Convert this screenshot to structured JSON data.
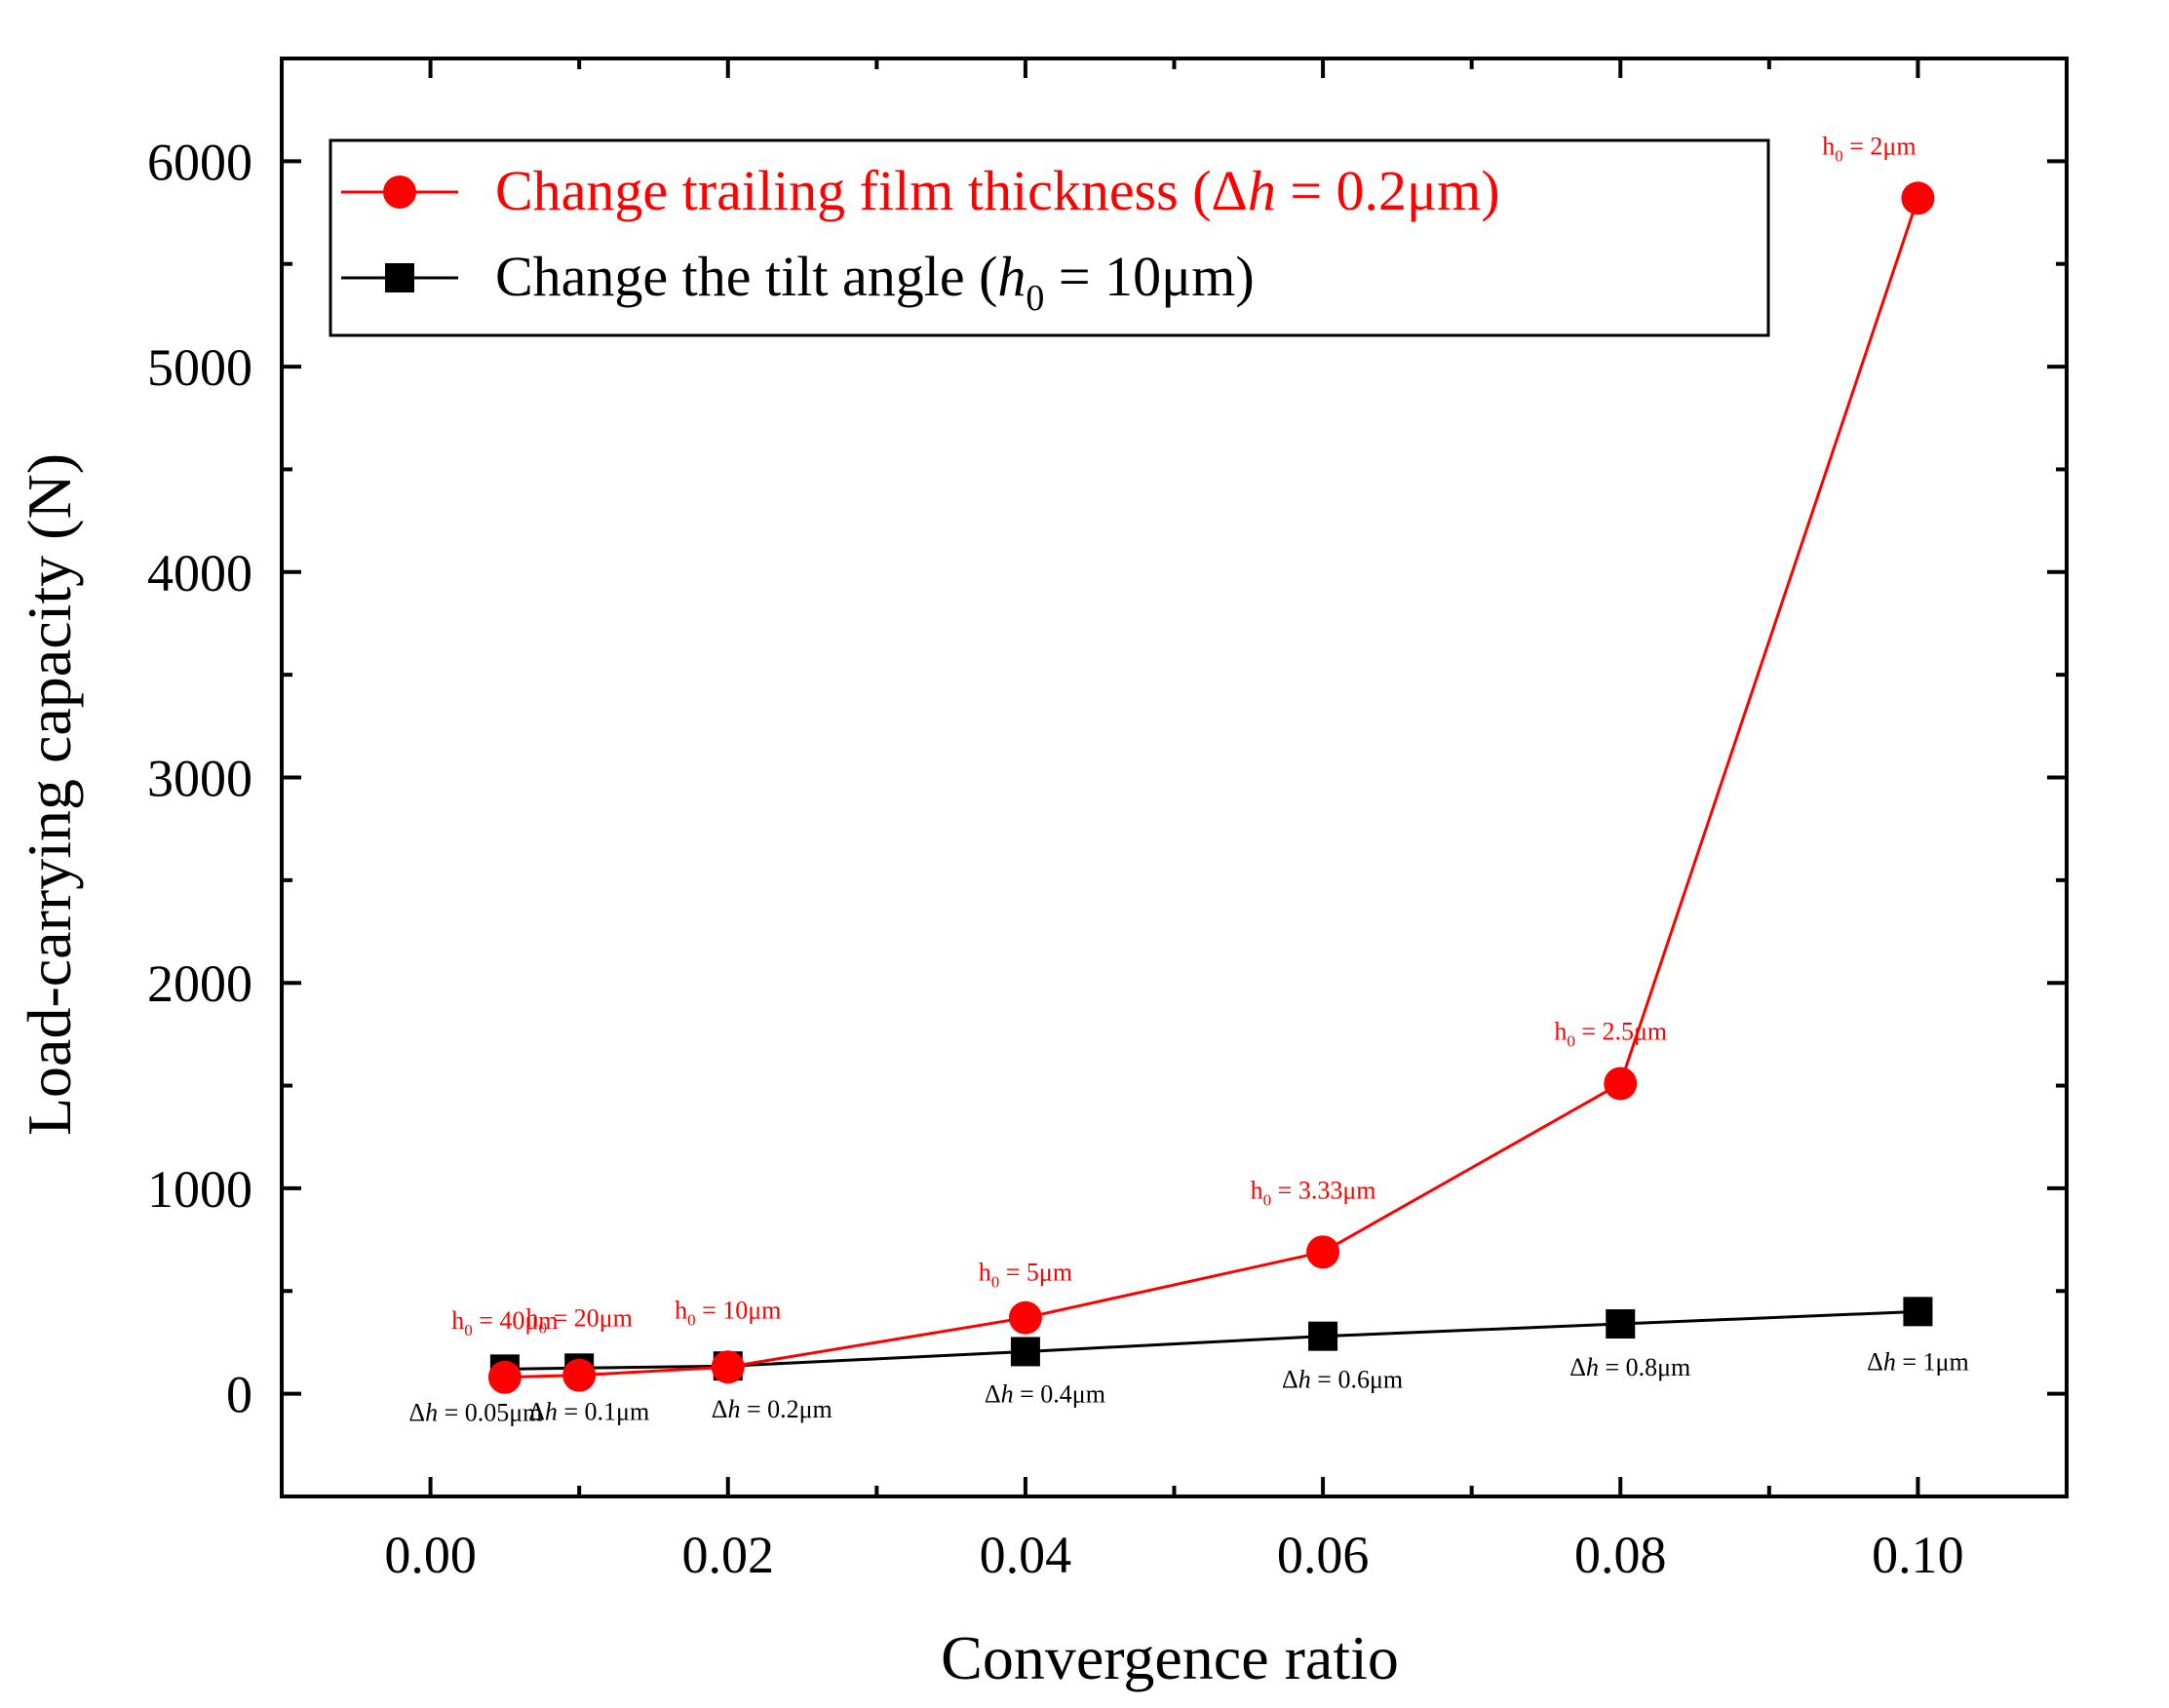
{
  "chart_data": {
    "type": "line",
    "xlabel": "Convergence ratio",
    "ylabel": "Load-carrying capacity (N)",
    "xlim": [
      -0.01,
      0.11
    ],
    "ylim": [
      -500,
      6500
    ],
    "xticks": [
      0.0,
      0.02,
      0.04,
      0.06,
      0.08,
      0.1
    ],
    "xtick_labels": [
      "0.00",
      "0.02",
      "0.04",
      "0.06",
      "0.08",
      "0.10"
    ],
    "yticks": [
      0,
      1000,
      2000,
      3000,
      4000,
      5000,
      6000
    ],
    "ytick_labels": [
      "0",
      "1000",
      "2000",
      "3000",
      "4000",
      "5000",
      "6000"
    ],
    "legend_position": "top-left",
    "series": [
      {
        "name": "Change trailing film thickness (Δh = 0.2μm)",
        "legend_parts": [
          "Change trailing film thickness (Δ",
          "h",
          " = 0.2μm)"
        ],
        "color": "#ff0000",
        "marker": "circle",
        "x": [
          0.005,
          0.01,
          0.02,
          0.04,
          0.06,
          0.08,
          0.1
        ],
        "y": [
          80,
          90,
          130,
          370,
          690,
          1510,
          5820
        ],
        "labels": [
          "h0 = 40μm",
          "h0 = 20μm",
          "h0 = 10μm",
          "h0 = 5μm",
          "h0 = 3.33μm",
          "h0 = 2.5μm",
          "h0 = 2μm"
        ],
        "label_parts": [
          [
            "h",
            "0",
            " = 40μm"
          ],
          [
            "h",
            "0",
            " = 20μm"
          ],
          [
            "h",
            "0",
            " = 10μm"
          ],
          [
            "h",
            "0",
            " = 5μm"
          ],
          [
            "h",
            "0",
            " = 3.33μm"
          ],
          [
            "h",
            "0",
            " = 2.5μm"
          ],
          [
            "h",
            "0",
            " = 2μm"
          ]
        ]
      },
      {
        "name": "Change the tilt angle (h0 = 10μm)",
        "legend_parts": [
          "Change the tilt angle (",
          "h",
          "0",
          " = 10μm)"
        ],
        "color": "#000000",
        "marker": "square",
        "x": [
          0.005,
          0.01,
          0.02,
          0.04,
          0.06,
          0.08,
          0.1
        ],
        "y": [
          120,
          125,
          135,
          205,
          280,
          340,
          400
        ],
        "labels": [
          "Δh = 0.05μm",
          "Δh = 0.1μm",
          "Δh = 0.2μm",
          "Δh = 0.4μm",
          "Δh = 0.6μm",
          "Δh = 0.8μm",
          "Δh = 1μm"
        ],
        "label_parts": [
          [
            "Δ",
            "h",
            " = 0.05μm"
          ],
          [
            "Δ",
            "h",
            " = 0.1μm"
          ],
          [
            "Δ",
            "h",
            " = 0.2μm"
          ],
          [
            "Δ",
            "h",
            " = 0.4μm"
          ],
          [
            "Δ",
            "h",
            " = 0.6μm"
          ],
          [
            "Δ",
            "h",
            " = 0.8μm"
          ],
          [
            "Δ",
            "h",
            " = 1μm"
          ]
        ]
      }
    ]
  }
}
